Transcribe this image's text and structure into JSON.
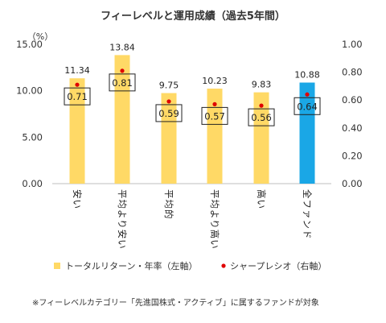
{
  "chart_data": {
    "type": "bar",
    "title": "フィーレベルと運用成績（過去5年間）",
    "left_unit": "（%）",
    "categories": [
      "安い",
      "平均より安い",
      "平均的",
      "平均より高い",
      "高い",
      "全ファンド"
    ],
    "series": [
      {
        "name": "トータルリターン・年率（左軸）",
        "type": "bar",
        "axis": "left",
        "values": [
          11.34,
          13.84,
          9.75,
          10.23,
          9.83,
          10.88
        ],
        "value_labels": [
          "11.34",
          "13.84",
          "9.75",
          "10.23",
          "9.83",
          "10.88"
        ]
      },
      {
        "name": "シャープレシオ（右軸）",
        "type": "scatter",
        "axis": "right",
        "values": [
          0.71,
          0.81,
          0.59,
          0.57,
          0.56,
          0.64
        ],
        "value_labels": [
          "0.71",
          "0.81",
          "0.59",
          "0.57",
          "0.56",
          "0.64"
        ]
      }
    ],
    "left_axis": {
      "ylim": [
        0,
        15
      ],
      "ticks": [
        "0.00",
        "5.00",
        "10.00",
        "15.00"
      ],
      "tick_values": [
        0,
        5,
        10,
        15
      ]
    },
    "right_axis": {
      "ylim": [
        0,
        1
      ],
      "ticks": [
        "0.00",
        "0.20",
        "0.40",
        "0.60",
        "0.80",
        "1.00"
      ],
      "tick_values": [
        0,
        0.2,
        0.4,
        0.6,
        0.8,
        1.0
      ]
    },
    "grid": false,
    "legend_position": "bottom",
    "colors": {
      "bar": "#FFD966",
      "bar_highlight": "#1AA7E6",
      "marker": "#E00000"
    },
    "highlight_index": 5,
    "note": "※フィーレベルカテゴリー「先進国株式・アクティブ」に属するファンドが対象"
  }
}
